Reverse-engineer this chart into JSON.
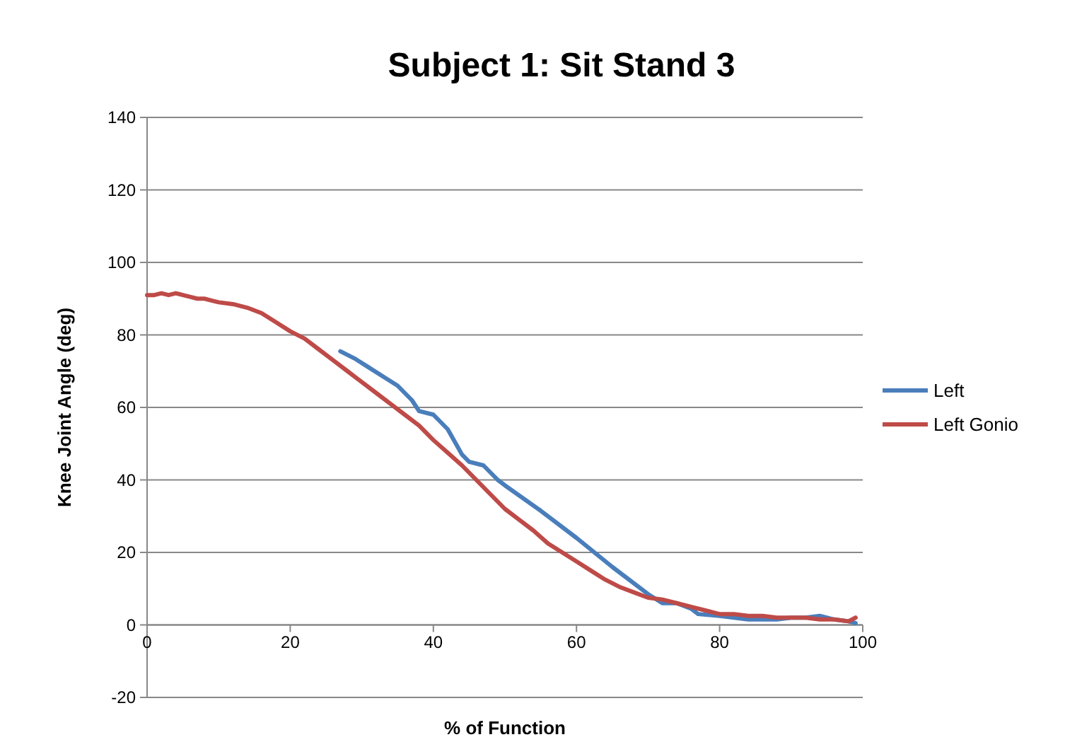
{
  "chart_data": {
    "type": "line",
    "title": "Subject 1: Sit Stand 3",
    "xlabel": "% of Function",
    "ylabel": "Knee Joint Angle (deg)",
    "xlim": [
      0,
      100
    ],
    "xticks": [
      0,
      20,
      40,
      60,
      80,
      100
    ],
    "ylim": [
      -20,
      140
    ],
    "yticks": [
      -20,
      0,
      20,
      40,
      60,
      80,
      100,
      120,
      140
    ],
    "grid": "y",
    "legend": "right",
    "marker": "none",
    "line_style": "solid",
    "series": [
      {
        "name": "Left",
        "color": "#4a7ebb",
        "x": [
          27,
          29,
          31,
          33,
          35,
          37,
          38,
          40,
          42,
          44,
          45,
          47,
          49,
          50,
          55,
          60,
          65,
          70,
          72,
          74,
          76,
          77,
          80,
          82,
          84,
          86,
          88,
          90,
          92,
          94,
          96,
          98,
          99
        ],
        "values": [
          75.5,
          73.5,
          71,
          68.5,
          66,
          62,
          59,
          58,
          54,
          47,
          45,
          44,
          40,
          38.5,
          31.5,
          24,
          16,
          8.5,
          6,
          6,
          4.5,
          3,
          2.5,
          2,
          1.5,
          1.5,
          1.5,
          2,
          2,
          2.5,
          1.5,
          1,
          0.5
        ]
      },
      {
        "name": "Left Gonio",
        "color": "#be4b48",
        "x": [
          0,
          1,
          2,
          3,
          4,
          5,
          6,
          7,
          8,
          9,
          10,
          12,
          14,
          16,
          18,
          20,
          22,
          24,
          26,
          28,
          30,
          32,
          34,
          36,
          38,
          40,
          42,
          44,
          46,
          48,
          50,
          52,
          54,
          56,
          58,
          60,
          62,
          64,
          66,
          68,
          70,
          72,
          74,
          76,
          78,
          80,
          82,
          84,
          86,
          88,
          90,
          92,
          94,
          96,
          98,
          99
        ],
        "values": [
          91,
          91,
          91.5,
          91,
          91.5,
          91,
          90.5,
          90,
          90,
          89.5,
          89,
          88.5,
          87.5,
          86,
          83.5,
          81,
          79,
          76,
          73,
          70,
          67,
          64,
          61,
          58,
          55,
          51,
          47.5,
          44,
          40,
          36,
          32,
          29,
          26,
          22.5,
          20,
          17.5,
          15,
          12.5,
          10.5,
          9,
          7.5,
          7,
          6,
          5,
          4,
          3,
          3,
          2.5,
          2.5,
          2,
          2,
          2,
          1.5,
          1.5,
          1,
          2
        ]
      }
    ]
  }
}
